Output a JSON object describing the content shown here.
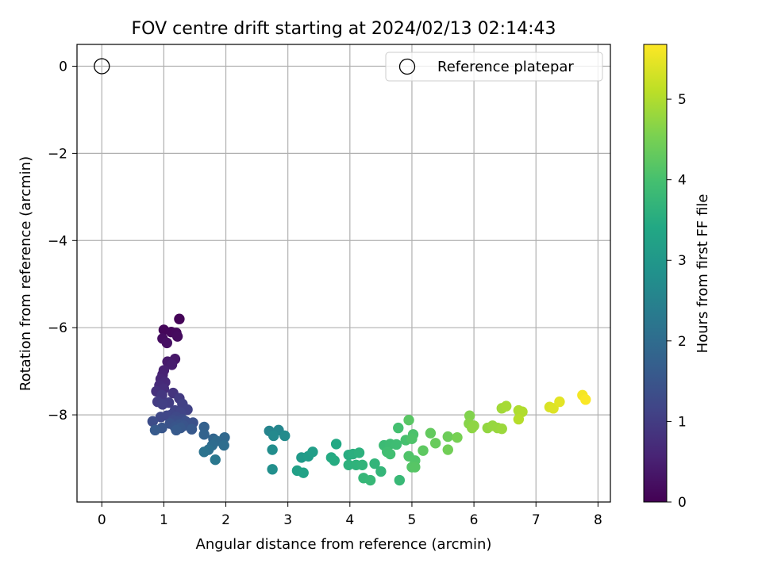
{
  "chart_data": {
    "type": "scatter",
    "title": "FOV centre drift starting at 2024/02/13 02:14:43",
    "xlabel": "Angular distance from reference (arcmin)",
    "ylabel": "Rotation from reference (arcmin)",
    "xlim": [
      -0.4,
      8.2
    ],
    "ylim": [
      -10.0,
      0.5
    ],
    "xticks": [
      0,
      1,
      2,
      3,
      4,
      5,
      6,
      7,
      8
    ],
    "xtick_labels": [
      "0",
      "1",
      "2",
      "3",
      "4",
      "5",
      "6",
      "7",
      "8"
    ],
    "yticks": [
      0,
      -2,
      -4,
      -6,
      -8
    ],
    "ytick_labels": [
      "0",
      "−2",
      "−4",
      "−6",
      "−8"
    ],
    "grid": true,
    "legend": {
      "placement": "top-right",
      "entries": [
        {
          "label": "Reference platepar",
          "marker": "open-circle"
        }
      ]
    },
    "reference_point": {
      "x": 0,
      "y": 0
    },
    "colorbar": {
      "label": "Hours from first FF file",
      "range": [
        0,
        5.68
      ],
      "ticks": [
        0,
        1,
        2,
        3,
        4,
        5
      ],
      "tick_labels": [
        "0",
        "1",
        "2",
        "3",
        "4",
        "5"
      ],
      "colormap": "viridis"
    },
    "points": [
      {
        "x": 1.25,
        "y": -5.8,
        "t": 0.05
      },
      {
        "x": 1.0,
        "y": -6.05,
        "t": 0.1
      },
      {
        "x": 1.12,
        "y": -6.1,
        "t": 0.12
      },
      {
        "x": 1.2,
        "y": -6.12,
        "t": 0.15
      },
      {
        "x": 1.22,
        "y": -6.2,
        "t": 0.18
      },
      {
        "x": 0.98,
        "y": -6.25,
        "t": 0.2
      },
      {
        "x": 1.05,
        "y": -6.35,
        "t": 0.25
      },
      {
        "x": 1.18,
        "y": -6.72,
        "t": 0.35
      },
      {
        "x": 1.06,
        "y": -6.78,
        "t": 0.4
      },
      {
        "x": 1.13,
        "y": -6.85,
        "t": 0.45
      },
      {
        "x": 1.0,
        "y": -6.98,
        "t": 0.5
      },
      {
        "x": 0.98,
        "y": -7.08,
        "t": 0.55
      },
      {
        "x": 0.95,
        "y": -7.18,
        "t": 0.6
      },
      {
        "x": 1.02,
        "y": -7.25,
        "t": 0.65
      },
      {
        "x": 0.93,
        "y": -7.32,
        "t": 0.7
      },
      {
        "x": 1.0,
        "y": -7.4,
        "t": 0.75
      },
      {
        "x": 0.88,
        "y": -7.46,
        "t": 0.8
      },
      {
        "x": 1.15,
        "y": -7.5,
        "t": 0.85
      },
      {
        "x": 0.97,
        "y": -7.55,
        "t": 0.9
      },
      {
        "x": 1.25,
        "y": -7.62,
        "t": 0.95
      },
      {
        "x": 0.9,
        "y": -7.7,
        "t": 1.0
      },
      {
        "x": 1.08,
        "y": -7.72,
        "t": 1.02
      },
      {
        "x": 0.98,
        "y": -7.76,
        "t": 1.05
      },
      {
        "x": 1.3,
        "y": -7.75,
        "t": 1.08
      },
      {
        "x": 1.38,
        "y": -7.88,
        "t": 1.1
      },
      {
        "x": 1.18,
        "y": -7.9,
        "t": 1.12
      },
      {
        "x": 1.27,
        "y": -7.95,
        "t": 1.15
      },
      {
        "x": 1.12,
        "y": -8.0,
        "t": 1.18
      },
      {
        "x": 1.05,
        "y": -8.02,
        "t": 1.2
      },
      {
        "x": 0.95,
        "y": -8.05,
        "t": 1.22
      },
      {
        "x": 1.2,
        "y": -8.05,
        "t": 1.25
      },
      {
        "x": 1.3,
        "y": -8.1,
        "t": 1.28
      },
      {
        "x": 1.15,
        "y": -8.12,
        "t": 1.3
      },
      {
        "x": 0.82,
        "y": -8.15,
        "t": 1.32
      },
      {
        "x": 1.22,
        "y": -8.15,
        "t": 1.35
      },
      {
        "x": 1.35,
        "y": -8.15,
        "t": 1.38
      },
      {
        "x": 1.47,
        "y": -8.18,
        "t": 1.4
      },
      {
        "x": 1.1,
        "y": -8.2,
        "t": 1.42
      },
      {
        "x": 1.25,
        "y": -8.22,
        "t": 1.45
      },
      {
        "x": 1.32,
        "y": -8.25,
        "t": 1.48
      },
      {
        "x": 1.18,
        "y": -8.28,
        "t": 1.5
      },
      {
        "x": 0.97,
        "y": -8.3,
        "t": 1.52
      },
      {
        "x": 1.27,
        "y": -8.3,
        "t": 1.55
      },
      {
        "x": 1.45,
        "y": -8.33,
        "t": 1.58
      },
      {
        "x": 1.2,
        "y": -8.35,
        "t": 1.6
      },
      {
        "x": 0.86,
        "y": -8.35,
        "t": 1.62
      },
      {
        "x": 1.65,
        "y": -8.28,
        "t": 1.75
      },
      {
        "x": 1.65,
        "y": -8.45,
        "t": 1.8
      },
      {
        "x": 1.8,
        "y": -8.55,
        "t": 1.85
      },
      {
        "x": 1.98,
        "y": -8.52,
        "t": 1.9
      },
      {
        "x": 1.85,
        "y": -8.6,
        "t": 1.95
      },
      {
        "x": 1.78,
        "y": -8.7,
        "t": 2.0
      },
      {
        "x": 1.97,
        "y": -8.7,
        "t": 2.05
      },
      {
        "x": 1.72,
        "y": -8.8,
        "t": 2.1
      },
      {
        "x": 1.65,
        "y": -8.85,
        "t": 2.15
      },
      {
        "x": 1.83,
        "y": -9.03,
        "t": 2.25
      },
      {
        "x": 2.7,
        "y": -8.37,
        "t": 2.55
      },
      {
        "x": 2.85,
        "y": -8.35,
        "t": 2.6
      },
      {
        "x": 2.77,
        "y": -8.48,
        "t": 2.65
      },
      {
        "x": 2.95,
        "y": -8.48,
        "t": 2.7
      },
      {
        "x": 2.75,
        "y": -8.8,
        "t": 2.75
      },
      {
        "x": 2.75,
        "y": -9.25,
        "t": 2.8
      },
      {
        "x": 3.22,
        "y": -8.98,
        "t": 3.05
      },
      {
        "x": 3.33,
        "y": -8.95,
        "t": 3.1
      },
      {
        "x": 3.4,
        "y": -8.85,
        "t": 3.15
      },
      {
        "x": 3.15,
        "y": -9.28,
        "t": 3.2
      },
      {
        "x": 3.25,
        "y": -9.33,
        "t": 3.25
      },
      {
        "x": 3.78,
        "y": -8.67,
        "t": 3.4
      },
      {
        "x": 3.7,
        "y": -8.98,
        "t": 3.45
      },
      {
        "x": 3.75,
        "y": -9.05,
        "t": 3.48
      },
      {
        "x": 3.98,
        "y": -8.92,
        "t": 3.5
      },
      {
        "x": 4.05,
        "y": -8.9,
        "t": 3.55
      },
      {
        "x": 4.15,
        "y": -8.87,
        "t": 3.6
      },
      {
        "x": 3.98,
        "y": -9.15,
        "t": 3.62
      },
      {
        "x": 4.1,
        "y": -9.15,
        "t": 3.65
      },
      {
        "x": 4.2,
        "y": -9.15,
        "t": 3.68
      },
      {
        "x": 4.4,
        "y": -9.12,
        "t": 3.7
      },
      {
        "x": 4.5,
        "y": -9.3,
        "t": 3.72
      },
      {
        "x": 4.22,
        "y": -9.45,
        "t": 3.75
      },
      {
        "x": 4.33,
        "y": -9.5,
        "t": 3.78
      },
      {
        "x": 4.8,
        "y": -9.5,
        "t": 3.8
      },
      {
        "x": 4.55,
        "y": -8.7,
        "t": 3.85
      },
      {
        "x": 4.65,
        "y": -8.67,
        "t": 3.88
      },
      {
        "x": 4.75,
        "y": -8.68,
        "t": 3.9
      },
      {
        "x": 4.6,
        "y": -8.85,
        "t": 3.92
      },
      {
        "x": 4.65,
        "y": -8.9,
        "t": 3.95
      },
      {
        "x": 4.78,
        "y": -8.3,
        "t": 3.98
      },
      {
        "x": 4.9,
        "y": -8.58,
        "t": 4.0
      },
      {
        "x": 5.02,
        "y": -8.45,
        "t": 4.05
      },
      {
        "x": 5.0,
        "y": -8.55,
        "t": 4.08
      },
      {
        "x": 4.95,
        "y": -8.95,
        "t": 4.1
      },
      {
        "x": 5.05,
        "y": -9.05,
        "t": 4.12
      },
      {
        "x": 5.0,
        "y": -9.2,
        "t": 4.15
      },
      {
        "x": 5.05,
        "y": -9.2,
        "t": 4.18
      },
      {
        "x": 4.95,
        "y": -8.12,
        "t": 4.2
      },
      {
        "x": 5.18,
        "y": -8.82,
        "t": 4.25
      },
      {
        "x": 5.3,
        "y": -8.42,
        "t": 4.3
      },
      {
        "x": 5.38,
        "y": -8.65,
        "t": 4.35
      },
      {
        "x": 5.58,
        "y": -8.5,
        "t": 4.4
      },
      {
        "x": 5.58,
        "y": -8.8,
        "t": 4.45
      },
      {
        "x": 5.73,
        "y": -8.52,
        "t": 4.5
      },
      {
        "x": 5.93,
        "y": -8.02,
        "t": 4.6
      },
      {
        "x": 5.92,
        "y": -8.2,
        "t": 4.65
      },
      {
        "x": 5.97,
        "y": -8.3,
        "t": 4.7
      },
      {
        "x": 6.0,
        "y": -8.25,
        "t": 4.72
      },
      {
        "x": 6.22,
        "y": -8.3,
        "t": 4.75
      },
      {
        "x": 6.3,
        "y": -8.25,
        "t": 4.78
      },
      {
        "x": 6.38,
        "y": -8.3,
        "t": 4.8
      },
      {
        "x": 6.45,
        "y": -8.32,
        "t": 4.82
      },
      {
        "x": 6.45,
        "y": -7.85,
        "t": 4.88
      },
      {
        "x": 6.52,
        "y": -7.8,
        "t": 4.92
      },
      {
        "x": 6.72,
        "y": -7.9,
        "t": 4.98
      },
      {
        "x": 6.78,
        "y": -7.93,
        "t": 5.0
      },
      {
        "x": 6.72,
        "y": -8.1,
        "t": 5.05
      },
      {
        "x": 7.22,
        "y": -7.82,
        "t": 5.35
      },
      {
        "x": 7.28,
        "y": -7.85,
        "t": 5.4
      },
      {
        "x": 7.38,
        "y": -7.7,
        "t": 5.45
      },
      {
        "x": 7.75,
        "y": -7.55,
        "t": 5.6
      },
      {
        "x": 7.8,
        "y": -7.65,
        "t": 5.65
      }
    ]
  }
}
